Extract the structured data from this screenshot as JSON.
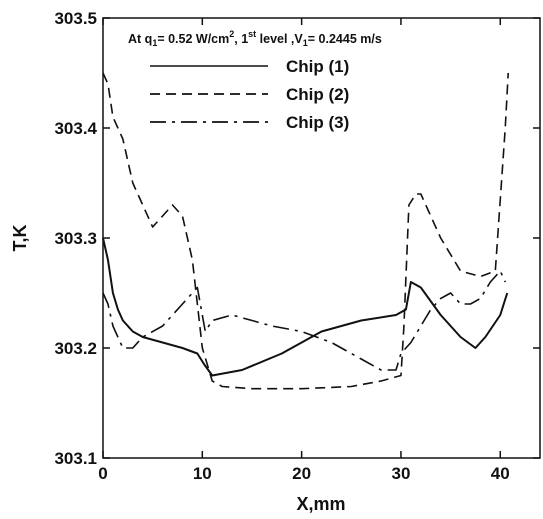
{
  "chart_data": {
    "type": "line",
    "xlabel": "X,mm",
    "ylabel": "T,K",
    "xlim": [
      0,
      44
    ],
    "ylim": [
      303.1,
      303.5
    ],
    "x_ticks": [
      0,
      10,
      20,
      30,
      40
    ],
    "y_ticks": [
      303.1,
      303.2,
      303.3,
      303.4,
      303.5
    ],
    "y_tick_labels": [
      "303.1",
      "303.2",
      "303.3",
      "303.4",
      "303.5"
    ],
    "grid": false,
    "legend_position": "top-right",
    "annotation": {
      "pre": "At q",
      "sub1": "1",
      "mid1": "= 0.52 W/cm",
      "sup1": "2",
      "mid2": ", 1",
      "sup2": "st",
      "mid3": " level ,V",
      "sub2": "1",
      "post": "= 0.2445 m/s"
    },
    "series": [
      {
        "name": "Chip (1)",
        "style": "solid",
        "x": [
          0,
          0.5,
          1,
          1.5,
          2,
          3,
          4,
          6,
          8,
          9.5,
          10.2,
          11,
          14,
          18,
          22,
          26,
          29.5,
          30.5,
          31,
          32,
          34,
          36,
          37.5,
          38.5,
          40,
          40.7
        ],
        "y": [
          303.3,
          303.28,
          303.25,
          303.235,
          303.225,
          303.215,
          303.21,
          303.205,
          303.2,
          303.195,
          303.185,
          303.175,
          303.18,
          303.195,
          303.215,
          303.225,
          303.23,
          303.235,
          303.26,
          303.255,
          303.23,
          303.21,
          303.2,
          303.21,
          303.23,
          303.25
        ]
      },
      {
        "name": "Chip (2)",
        "style": "dashed",
        "x": [
          0,
          0.5,
          1,
          2,
          3,
          4,
          5,
          6,
          7,
          8,
          9,
          10,
          11,
          12,
          15,
          20,
          25,
          28,
          30,
          30.3,
          30.8,
          31.5,
          32,
          33,
          34,
          36,
          38,
          39.5,
          40.5,
          40.8
        ],
        "y": [
          303.45,
          303.44,
          303.41,
          303.39,
          303.35,
          303.33,
          303.31,
          303.32,
          303.33,
          303.32,
          303.28,
          303.2,
          303.17,
          303.165,
          303.163,
          303.163,
          303.165,
          303.17,
          303.175,
          303.22,
          303.33,
          303.34,
          303.34,
          303.32,
          303.3,
          303.27,
          303.265,
          303.27,
          303.4,
          303.45
        ]
      },
      {
        "name": "Chip (3)",
        "style": "dashdot",
        "x": [
          0,
          0.5,
          1,
          2,
          3,
          4,
          6,
          8,
          9.5,
          10.3,
          11,
          13,
          17,
          20,
          23,
          26,
          28,
          29.5,
          30,
          31,
          32,
          33,
          34,
          35,
          36,
          37,
          38,
          39,
          40,
          40.5
        ],
        "y": [
          303.25,
          303.24,
          303.22,
          303.2,
          303.2,
          303.21,
          303.22,
          303.24,
          303.255,
          303.215,
          303.225,
          303.23,
          303.22,
          303.215,
          303.205,
          303.19,
          303.18,
          303.18,
          303.195,
          303.205,
          303.22,
          303.235,
          303.245,
          303.25,
          303.24,
          303.24,
          303.245,
          303.26,
          303.27,
          303.26
        ]
      }
    ]
  }
}
